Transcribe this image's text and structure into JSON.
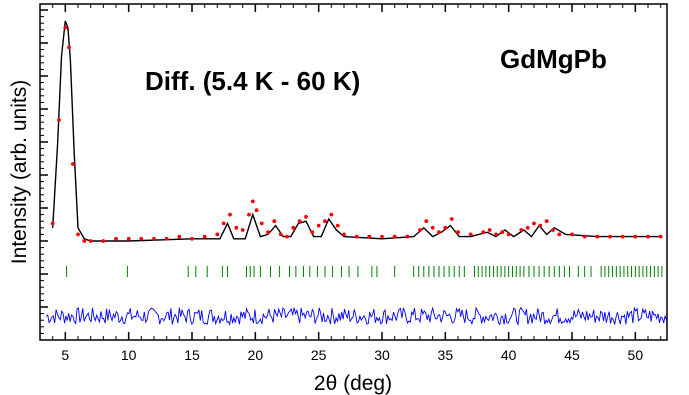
{
  "chart_data": {
    "type": "scatter",
    "title": "",
    "annotations": [
      "Diff. (5.4 K - 60 K)",
      "GdMgPb"
    ],
    "xlabel": "2θ (deg)",
    "ylabel": "Intensity (arb. units)",
    "xlim": [
      3.0,
      52.5
    ],
    "x_ticks": [
      5,
      10,
      15,
      20,
      25,
      30,
      35,
      40,
      45,
      50
    ],
    "y_ticks_labeled": false,
    "grid": false,
    "legend": "none",
    "colors": {
      "observed": "#ff0000",
      "calculated": "#000000",
      "reflections": "#008000",
      "difference": "#0000ff"
    },
    "series": [
      {
        "role": "observed",
        "render": "points",
        "x": [
          4.0,
          4.5,
          5.0,
          5.3,
          5.6,
          6.0,
          6.5,
          7,
          8,
          9,
          10,
          11,
          12,
          13,
          14,
          15,
          16,
          17,
          17.5,
          18,
          18.5,
          19,
          19.5,
          19.8,
          20.1,
          20.5,
          21,
          21.5,
          22,
          22.5,
          23,
          23.5,
          24,
          24.5,
          25,
          25.5,
          26,
          26.5,
          27,
          28,
          29,
          30,
          31,
          32,
          33,
          33.5,
          34,
          34.5,
          35,
          35.5,
          36,
          37,
          38,
          38.5,
          39,
          39.5,
          40,
          41,
          41.5,
          42,
          42.5,
          43,
          43.5,
          44,
          45,
          46,
          47,
          48,
          49,
          50,
          51,
          52
        ],
        "y": [
          0.08,
          0.55,
          0.97,
          0.88,
          0.35,
          0.03,
          0.0,
          0.0,
          0.0,
          0.01,
          0.01,
          0.01,
          0.01,
          0.01,
          0.02,
          0.01,
          0.02,
          0.03,
          0.08,
          0.12,
          0.06,
          0.05,
          0.12,
          0.18,
          0.14,
          0.08,
          0.04,
          0.09,
          0.03,
          0.02,
          0.06,
          0.09,
          0.11,
          0.04,
          0.07,
          0.09,
          0.12,
          0.07,
          0.03,
          0.02,
          0.02,
          0.02,
          0.02,
          0.02,
          0.05,
          0.09,
          0.06,
          0.04,
          0.06,
          0.1,
          0.04,
          0.03,
          0.04,
          0.05,
          0.03,
          0.04,
          0.03,
          0.05,
          0.06,
          0.08,
          0.07,
          0.09,
          0.05,
          0.03,
          0.03,
          0.02,
          0.02,
          0.02,
          0.02,
          0.02,
          0.02,
          0.02
        ]
      },
      {
        "role": "calculated",
        "render": "line",
        "x": [
          4.0,
          4.4,
          4.7,
          5.0,
          5.2,
          5.4,
          5.7,
          6.0,
          6.5,
          7,
          10,
          15,
          17.2,
          17.8,
          18.3,
          19.2,
          19.8,
          20.4,
          21.0,
          21.6,
          22.2,
          22.8,
          23.4,
          24.0,
          24.6,
          25.2,
          25.8,
          26.4,
          27.0,
          30,
          32.5,
          33.3,
          34.0,
          34.7,
          35.4,
          36.1,
          37,
          38.3,
          39.0,
          39.7,
          40.4,
          41.2,
          41.8,
          42.4,
          43.0,
          43.6,
          44.5,
          47,
          52
        ],
        "y": [
          0.06,
          0.45,
          0.84,
          1.0,
          0.97,
          0.82,
          0.4,
          0.06,
          0.01,
          0.0,
          0.0,
          0.01,
          0.01,
          0.08,
          0.01,
          0.01,
          0.12,
          0.02,
          0.03,
          0.07,
          0.02,
          0.02,
          0.08,
          0.09,
          0.02,
          0.02,
          0.1,
          0.05,
          0.02,
          0.01,
          0.02,
          0.06,
          0.02,
          0.04,
          0.07,
          0.02,
          0.02,
          0.04,
          0.02,
          0.05,
          0.02,
          0.05,
          0.02,
          0.07,
          0.03,
          0.06,
          0.03,
          0.02,
          0.02
        ]
      },
      {
        "role": "reflections",
        "render": "ticks",
        "x": [
          5.1,
          9.9,
          14.7,
          15.3,
          16.2,
          17.4,
          17.8,
          19.3,
          19.6,
          19.9,
          20.4,
          21.2,
          21.9,
          22.7,
          23.2,
          23.8,
          24.3,
          24.9,
          25.5,
          26.1,
          26.8,
          27.4,
          28.1,
          29.2,
          29.6,
          31.0,
          32.5,
          32.9,
          33.3,
          33.7,
          34.1,
          34.5,
          34.9,
          35.3,
          35.7,
          36.1,
          36.5,
          37.3,
          37.6,
          37.9,
          38.2,
          38.5,
          38.8,
          39.1,
          39.4,
          39.7,
          40.0,
          40.3,
          40.6,
          40.9,
          41.2,
          41.6,
          42.0,
          42.4,
          42.8,
          43.2,
          43.6,
          44.0,
          44.4,
          44.8,
          45.5,
          46.0,
          46.5,
          47.3,
          47.6,
          47.9,
          48.2,
          48.5,
          48.8,
          49.1,
          49.4,
          49.7,
          50.0,
          50.3,
          50.6,
          50.9,
          51.2,
          51.5,
          51.8,
          52.1
        ]
      },
      {
        "role": "difference",
        "render": "line",
        "x": [
          3.5,
          52.5
        ],
        "y": [
          0.0,
          0.0
        ]
      }
    ]
  }
}
